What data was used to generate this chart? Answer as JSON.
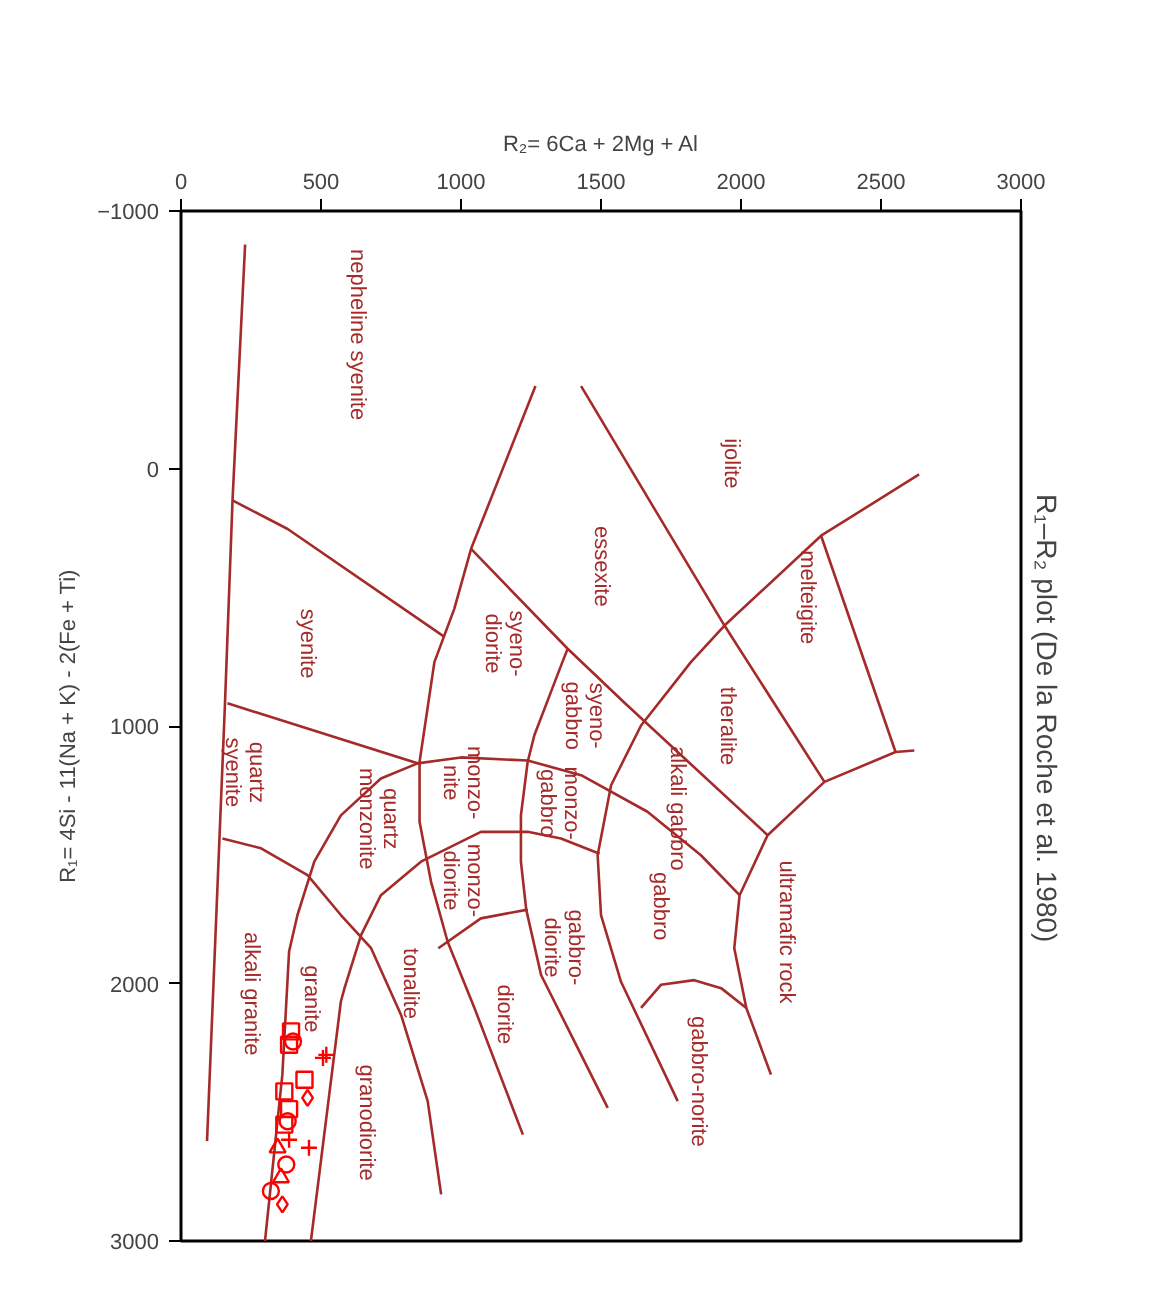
{
  "chart_data": {
    "type": "scatter",
    "title": "R₁–R₂ plot  (De la Roche  et al. 1980)",
    "xlabel": "R₂= 6Ca + 2Mg + Al",
    "ylabel": "R₁= 4Si - 11(Na + K) - 2(Fe + Ti)",
    "xlim": [
      0,
      3000
    ],
    "xticks": [
      0,
      500,
      1000,
      1500,
      2000,
      2500,
      3000
    ],
    "ylim": [
      3000,
      -1000
    ],
    "yticks": [
      -1000,
      0,
      1000,
      2000,
      3000
    ],
    "series": [
      {
        "type": "line",
        "color": "#a52a2a",
        "x": [
          229,
          184,
          157,
          93
        ],
        "values": [
          -870,
          124,
          915,
          2612
        ]
      },
      {
        "type": "line",
        "color": "#a52a2a",
        "x": [
          184,
          381,
          941
        ],
        "values": [
          124,
          235,
          654
        ]
      },
      {
        "type": "line",
        "color": "#a52a2a",
        "x": [
          1266,
          1036,
          976,
          905,
          852,
          852,
          893,
          952,
          1048,
          1221
        ],
        "values": [
          -320,
          312,
          545,
          752,
          1140,
          1372,
          1605,
          1837,
          2095,
          2587
        ]
      },
      {
        "type": "line",
        "color": "#a52a2a",
        "x": [
          1429,
          1691,
          1941,
          2298
        ],
        "values": [
          -320,
          157,
          610,
          1217
        ]
      },
      {
        "type": "line",
        "color": "#a52a2a",
        "x": [
          2636,
          2286,
          1941,
          1821,
          1643,
          1536,
          1488,
          1500,
          1571,
          1774
        ],
        "values": [
          23,
          261,
          610,
          752,
          998,
          1230,
          1502,
          1734,
          1992,
          2457
        ]
      },
      {
        "type": "line",
        "color": "#a52a2a",
        "x": [
          2286,
          2552
        ],
        "values": [
          261,
          1101
        ]
      },
      {
        "type": "line",
        "color": "#a52a2a",
        "x": [
          2619,
          2552,
          2298,
          2095,
          1995,
          1976,
          2019,
          2107
        ],
        "values": [
          1095,
          1101,
          1217,
          1424,
          1657,
          1863,
          2095,
          2354
        ]
      },
      {
        "type": "line",
        "color": "#a52a2a",
        "x": [
          1036,
          1381,
          1581,
          2095
        ],
        "values": [
          312,
          700,
          907,
          1424
        ]
      },
      {
        "type": "line",
        "color": "#a52a2a",
        "x": [
          166,
          845,
          1000,
          1238,
          1429,
          1666,
          1857,
          1995
        ],
        "values": [
          912,
          1145,
          1122,
          1134,
          1191,
          1333,
          1502,
          1657
        ]
      },
      {
        "type": "line",
        "color": "#a52a2a",
        "x": [
          845,
          714,
          571,
          476,
          416,
          386,
          362,
          300
        ],
        "values": [
          1145,
          1204,
          1347,
          1527,
          1734,
          1876,
          2354,
          3000
        ]
      },
      {
        "type": "line",
        "color": "#a52a2a",
        "x": [
          148,
          286,
          452,
          571,
          679,
          786,
          881,
          929
        ],
        "values": [
          1437,
          1475,
          1579,
          1734,
          1863,
          2122,
          2457,
          2819
        ]
      },
      {
        "type": "line",
        "color": "#a52a2a",
        "x": [
          1495,
          1357,
          1238,
          1071,
          857,
          714,
          643,
          584,
          571,
          464
        ],
        "values": [
          1496,
          1437,
          1411,
          1411,
          1527,
          1657,
          1812,
          2018,
          2070,
          3000
        ]
      },
      {
        "type": "line",
        "color": "#a52a2a",
        "x": [
          919,
          1071,
          1238
        ],
        "values": [
          1863,
          1747,
          1713
        ]
      },
      {
        "type": "line",
        "color": "#a52a2a",
        "x": [
          1381,
          1362,
          1262,
          1238,
          1214,
          1214,
          1233,
          1286,
          1405,
          1524
        ],
        "values": [
          700,
          752,
          1036,
          1140,
          1347,
          1527,
          1713,
          1967,
          2225,
          2483
        ]
      },
      {
        "type": "line",
        "color": "#a52a2a",
        "x": [
          1643,
          1714,
          1833,
          1929,
          2019
        ],
        "values": [
          2095,
          2005,
          1987,
          2018,
          2095
        ]
      },
      {
        "color": "#ff0000",
        "marker": "square",
        "x": [
          393,
          369,
          386,
          441,
          369,
          386
        ],
        "values": [
          2186,
          2548,
          2238,
          2374,
          2419,
          2488
        ]
      },
      {
        "color": "#ff0000",
        "marker": "circle",
        "x": [
          400,
          381,
          376,
          321
        ],
        "values": [
          2225,
          2535,
          2703,
          2806
        ]
      },
      {
        "color": "#ff0000",
        "marker": "cross",
        "x": [
          507,
          519,
          386,
          457
        ],
        "values": [
          2289,
          2277,
          2607,
          2638
        ]
      },
      {
        "color": "#ff0000",
        "marker": "diamond",
        "x": [
          452,
          362
        ],
        "values": [
          2444,
          2858
        ]
      },
      {
        "color": "#ff0000",
        "marker": "triangle",
        "x": [
          345,
          357
        ],
        "values": [
          2638,
          2754
        ]
      }
    ],
    "annotations": [
      "nepheline syenite",
      "ijolite",
      "essexite",
      "melteigite",
      "syenite",
      "syeno-\ndiorite",
      "theralite",
      "syeno-\ngabbro",
      "monzo-\ngabbro",
      "quartz\nsyenite",
      "quartz\nmonzonite",
      "monzo-\nnite",
      "monzo-\ndiorite",
      "alkali gabbro",
      "ultramafic rock",
      "gabbro",
      "gabbro-\ndiorite",
      "alkali granite",
      "granite",
      "tonalite",
      "diorite",
      "gabbro-norite",
      "granodiorite"
    ]
  }
}
